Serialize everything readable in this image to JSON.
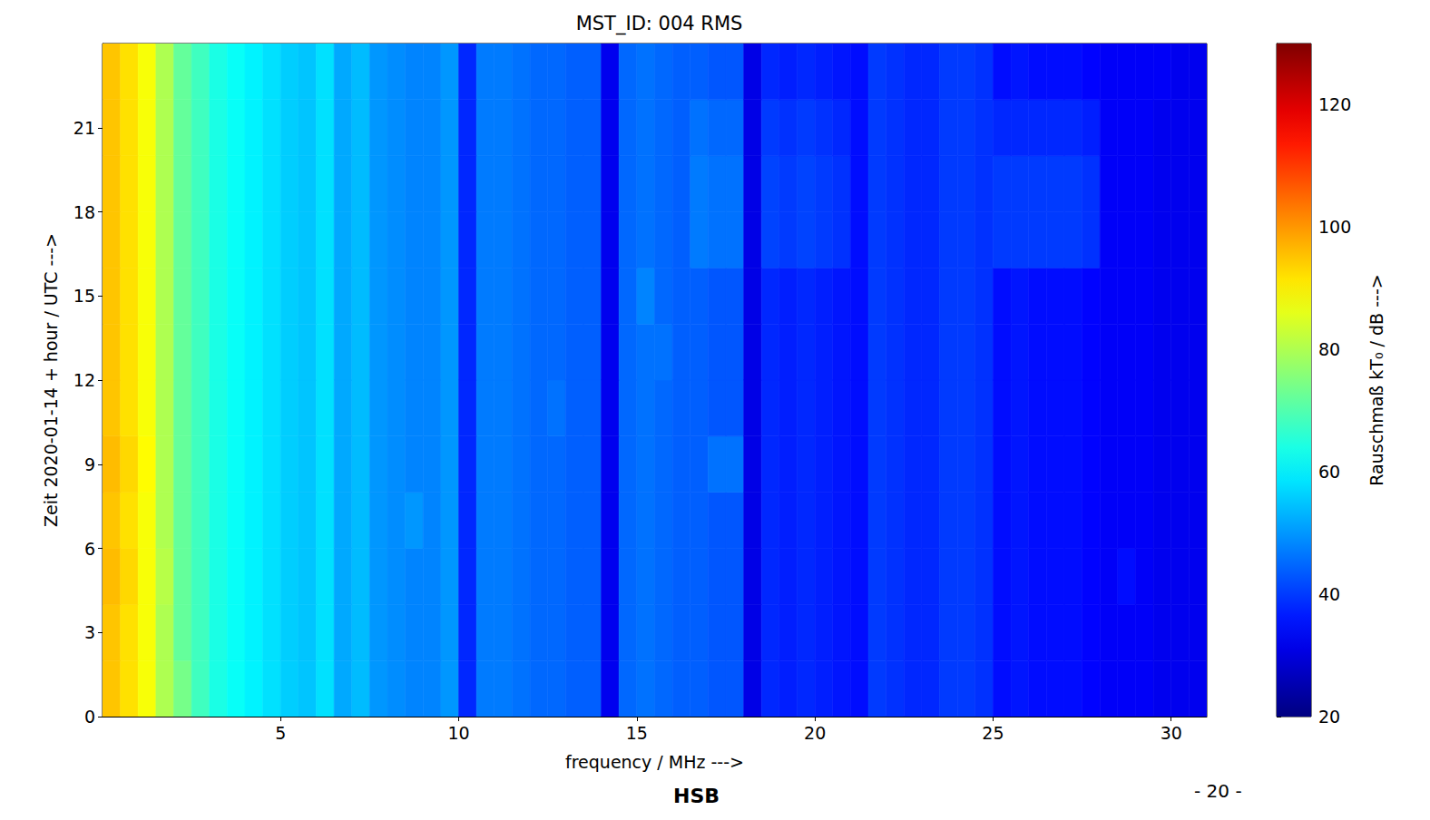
{
  "chart_data": {
    "type": "heatmap",
    "title": "MST_ID: 004 RMS",
    "x_label": "frequency / MHz --->",
    "y_label": "Zeit 2020-01-14 + hour / UTC --->",
    "xlim": [
      0,
      31
    ],
    "xticks": [
      5,
      10,
      15,
      20,
      25,
      30
    ],
    "ylim": [
      0,
      24
    ],
    "yticks": [
      0,
      3,
      6,
      9,
      12,
      15,
      18,
      21
    ],
    "grid": false,
    "x_bins": [
      0,
      0.5,
      1,
      1.5,
      2,
      2.5,
      3,
      3.5,
      4,
      4.5,
      5,
      5.5,
      6,
      6.5,
      7,
      7.5,
      8,
      8.5,
      9,
      9.5,
      10,
      10.5,
      11,
      11.5,
      12,
      12.5,
      13,
      13.5,
      14,
      14.5,
      15,
      15.5,
      16,
      16.5,
      17,
      17.5,
      18,
      18.5,
      19,
      19.5,
      20,
      20.5,
      21,
      21.5,
      22,
      22.5,
      23,
      23.5,
      24,
      24.5,
      25,
      25.5,
      26,
      26.5,
      27,
      27.5,
      28,
      28.5,
      29,
      29.5,
      30,
      30.5,
      31
    ],
    "y_bins": [
      0,
      2,
      4,
      6,
      8,
      10,
      12,
      14,
      16,
      18,
      20,
      22,
      24
    ],
    "z": [
      [
        95,
        92,
        88,
        80,
        74,
        68,
        64,
        62,
        60,
        58,
        56,
        55,
        58,
        52,
        54,
        50,
        49,
        48,
        48,
        50,
        38,
        47,
        47,
        46,
        45,
        45,
        44,
        44,
        32,
        45,
        46,
        45,
        44,
        44,
        43,
        43,
        31,
        38,
        37,
        38,
        37,
        36,
        35,
        40,
        39,
        38,
        38,
        40,
        40,
        39,
        35,
        36,
        35,
        35,
        35,
        34,
        33,
        33,
        33,
        32,
        32,
        32
      ],
      [
        95,
        92,
        88,
        80,
        72,
        68,
        64,
        62,
        60,
        58,
        56,
        55,
        58,
        52,
        54,
        50,
        49,
        48,
        48,
        50,
        38,
        47,
        47,
        46,
        45,
        45,
        44,
        44,
        32,
        45,
        46,
        45,
        44,
        44,
        43,
        43,
        31,
        38,
        37,
        38,
        37,
        36,
        35,
        40,
        39,
        38,
        38,
        40,
        40,
        39,
        35,
        36,
        35,
        35,
        35,
        34,
        33,
        33,
        33,
        32,
        32,
        32
      ],
      [
        96,
        93,
        88,
        81,
        72,
        68,
        64,
        62,
        60,
        58,
        56,
        55,
        58,
        52,
        54,
        50,
        49,
        48,
        48,
        50,
        38,
        47,
        47,
        46,
        45,
        45,
        44,
        44,
        32,
        45,
        46,
        45,
        44,
        44,
        43,
        43,
        31,
        38,
        37,
        38,
        37,
        36,
        35,
        40,
        39,
        38,
        38,
        40,
        40,
        39,
        35,
        36,
        35,
        35,
        35,
        34,
        33,
        35,
        33,
        32,
        32,
        32
      ],
      [
        95,
        92,
        88,
        80,
        72,
        68,
        64,
        62,
        60,
        58,
        56,
        55,
        58,
        52,
        54,
        50,
        49,
        50,
        48,
        50,
        38,
        47,
        47,
        46,
        45,
        45,
        44,
        44,
        32,
        45,
        46,
        45,
        44,
        44,
        43,
        43,
        31,
        38,
        37,
        38,
        37,
        36,
        35,
        40,
        39,
        38,
        38,
        40,
        40,
        39,
        35,
        36,
        35,
        35,
        35,
        34,
        33,
        33,
        33,
        32,
        32,
        32
      ],
      [
        96,
        93,
        89,
        80,
        72,
        68,
        64,
        62,
        60,
        58,
        56,
        55,
        58,
        52,
        54,
        50,
        49,
        48,
        48,
        50,
        38,
        47,
        47,
        46,
        45,
        45,
        44,
        44,
        32,
        45,
        46,
        45,
        44,
        44,
        46,
        46,
        31,
        38,
        37,
        38,
        37,
        36,
        35,
        40,
        39,
        38,
        38,
        40,
        40,
        39,
        35,
        36,
        35,
        35,
        35,
        34,
        33,
        33,
        33,
        32,
        32,
        32
      ],
      [
        95,
        92,
        88,
        80,
        72,
        68,
        64,
        62,
        60,
        58,
        56,
        55,
        58,
        52,
        54,
        50,
        49,
        48,
        48,
        50,
        38,
        47,
        47,
        46,
        45,
        46,
        44,
        44,
        32,
        45,
        46,
        45,
        44,
        44,
        43,
        43,
        31,
        38,
        37,
        38,
        37,
        36,
        35,
        40,
        39,
        38,
        38,
        40,
        40,
        39,
        35,
        36,
        35,
        35,
        35,
        34,
        33,
        33,
        33,
        32,
        32,
        32
      ],
      [
        95,
        92,
        88,
        80,
        72,
        68,
        64,
        62,
        60,
        58,
        56,
        55,
        58,
        52,
        54,
        50,
        49,
        48,
        48,
        50,
        38,
        47,
        47,
        46,
        45,
        45,
        44,
        44,
        32,
        45,
        46,
        46,
        44,
        44,
        43,
        43,
        31,
        38,
        37,
        38,
        37,
        36,
        35,
        40,
        39,
        38,
        38,
        40,
        40,
        39,
        35,
        36,
        35,
        35,
        35,
        34,
        33,
        33,
        33,
        32,
        32,
        32
      ],
      [
        95,
        92,
        88,
        80,
        72,
        68,
        64,
        62,
        60,
        58,
        56,
        55,
        58,
        52,
        54,
        50,
        49,
        48,
        48,
        50,
        38,
        47,
        47,
        46,
        45,
        45,
        44,
        44,
        32,
        45,
        48,
        45,
        44,
        44,
        43,
        43,
        31,
        38,
        37,
        38,
        37,
        36,
        35,
        40,
        39,
        38,
        38,
        40,
        40,
        39,
        35,
        36,
        35,
        35,
        35,
        34,
        33,
        33,
        33,
        32,
        32,
        32
      ],
      [
        95,
        92,
        88,
        80,
        72,
        68,
        64,
        62,
        60,
        58,
        56,
        55,
        58,
        52,
        54,
        50,
        49,
        48,
        48,
        50,
        38,
        47,
        47,
        46,
        45,
        45,
        44,
        44,
        32,
        45,
        46,
        45,
        44,
        47,
        46,
        46,
        31,
        41,
        40,
        41,
        40,
        39,
        35,
        40,
        39,
        38,
        38,
        40,
        40,
        39,
        40,
        40,
        40,
        40,
        40,
        39,
        33,
        33,
        33,
        32,
        32,
        32
      ],
      [
        95,
        92,
        88,
        80,
        72,
        68,
        64,
        62,
        60,
        58,
        56,
        55,
        58,
        52,
        54,
        50,
        49,
        48,
        48,
        50,
        38,
        47,
        47,
        46,
        45,
        45,
        44,
        44,
        32,
        45,
        46,
        45,
        44,
        47,
        46,
        46,
        31,
        41,
        40,
        41,
        40,
        39,
        35,
        40,
        39,
        38,
        38,
        40,
        40,
        39,
        40,
        40,
        40,
        40,
        40,
        39,
        33,
        33,
        33,
        32,
        32,
        32
      ],
      [
        95,
        92,
        88,
        80,
        72,
        68,
        64,
        62,
        60,
        58,
        56,
        55,
        58,
        52,
        54,
        50,
        49,
        48,
        48,
        50,
        38,
        47,
        47,
        46,
        45,
        45,
        44,
        44,
        32,
        45,
        46,
        45,
        44,
        46,
        45,
        45,
        31,
        40,
        39,
        40,
        39,
        38,
        35,
        40,
        39,
        38,
        38,
        40,
        40,
        39,
        38,
        38,
        38,
        38,
        38,
        37,
        33,
        33,
        33,
        32,
        32,
        32
      ],
      [
        95,
        92,
        88,
        80,
        72,
        68,
        64,
        62,
        60,
        58,
        56,
        55,
        58,
        52,
        54,
        50,
        49,
        48,
        48,
        50,
        38,
        47,
        47,
        46,
        45,
        45,
        44,
        44,
        32,
        45,
        46,
        45,
        44,
        44,
        43,
        43,
        31,
        38,
        37,
        38,
        37,
        36,
        35,
        40,
        39,
        38,
        38,
        40,
        40,
        39,
        35,
        36,
        35,
        35,
        35,
        34,
        33,
        33,
        33,
        33,
        32,
        32
      ]
    ],
    "colorbar": {
      "label": "Rauschmaß kT₀ / dB --->",
      "range": [
        20,
        130
      ],
      "ticks": [
        20,
        40,
        60,
        80,
        100,
        120
      ]
    },
    "annotations": [
      "HSB",
      "- 20 -"
    ]
  }
}
